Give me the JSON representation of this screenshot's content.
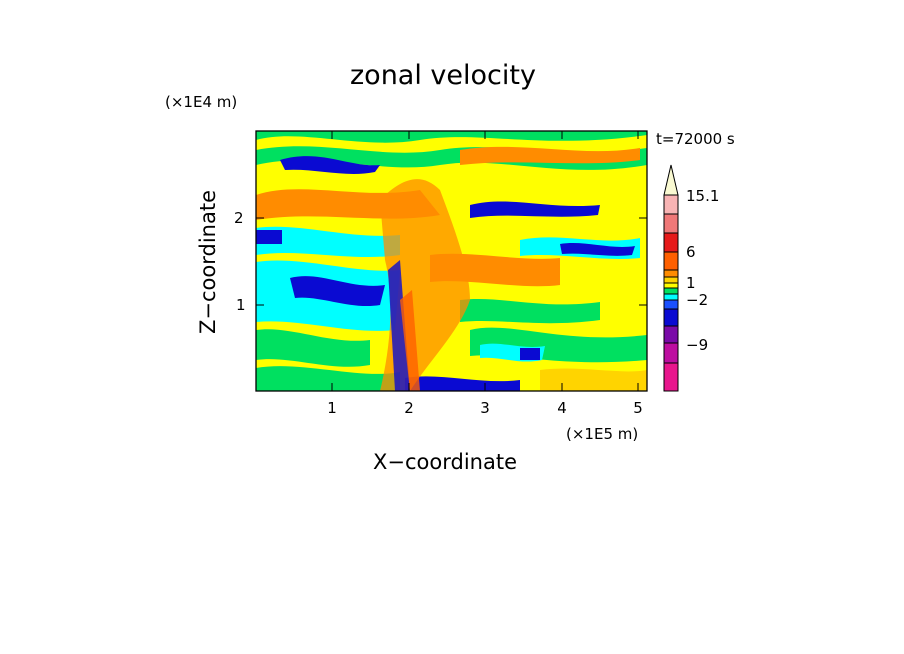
{
  "chart_data": {
    "type": "heatmap",
    "title": "zonal velocity",
    "xlabel": "X−coordinate",
    "ylabel": "Z−coordinate",
    "x_unit": "(×1E5 m)",
    "y_unit": "(×1E4 m)",
    "annotation": "t=72000 s",
    "xlim": [
      0,
      5.15
    ],
    "ylim": [
      0,
      2.95
    ],
    "x_ticks": [
      "1",
      "2",
      "3",
      "4",
      "5"
    ],
    "y_ticks": [
      "1",
      "2"
    ],
    "colorbar": {
      "labels": [
        "15.1",
        "6",
        "1",
        "−2",
        "−9"
      ],
      "colors": [
        "#e8168d",
        "#bd0ea0",
        "#7a0aa8",
        "#0a0ad2",
        "#1a50ff",
        "#00ffff",
        "#00e060",
        "#ffff00",
        "#ffd400",
        "#ff8c00",
        "#ff6000",
        "#e61a1a",
        "#f07878",
        "#f8b4b4",
        "#fafad2"
      ],
      "arrow_top": true
    }
  }
}
